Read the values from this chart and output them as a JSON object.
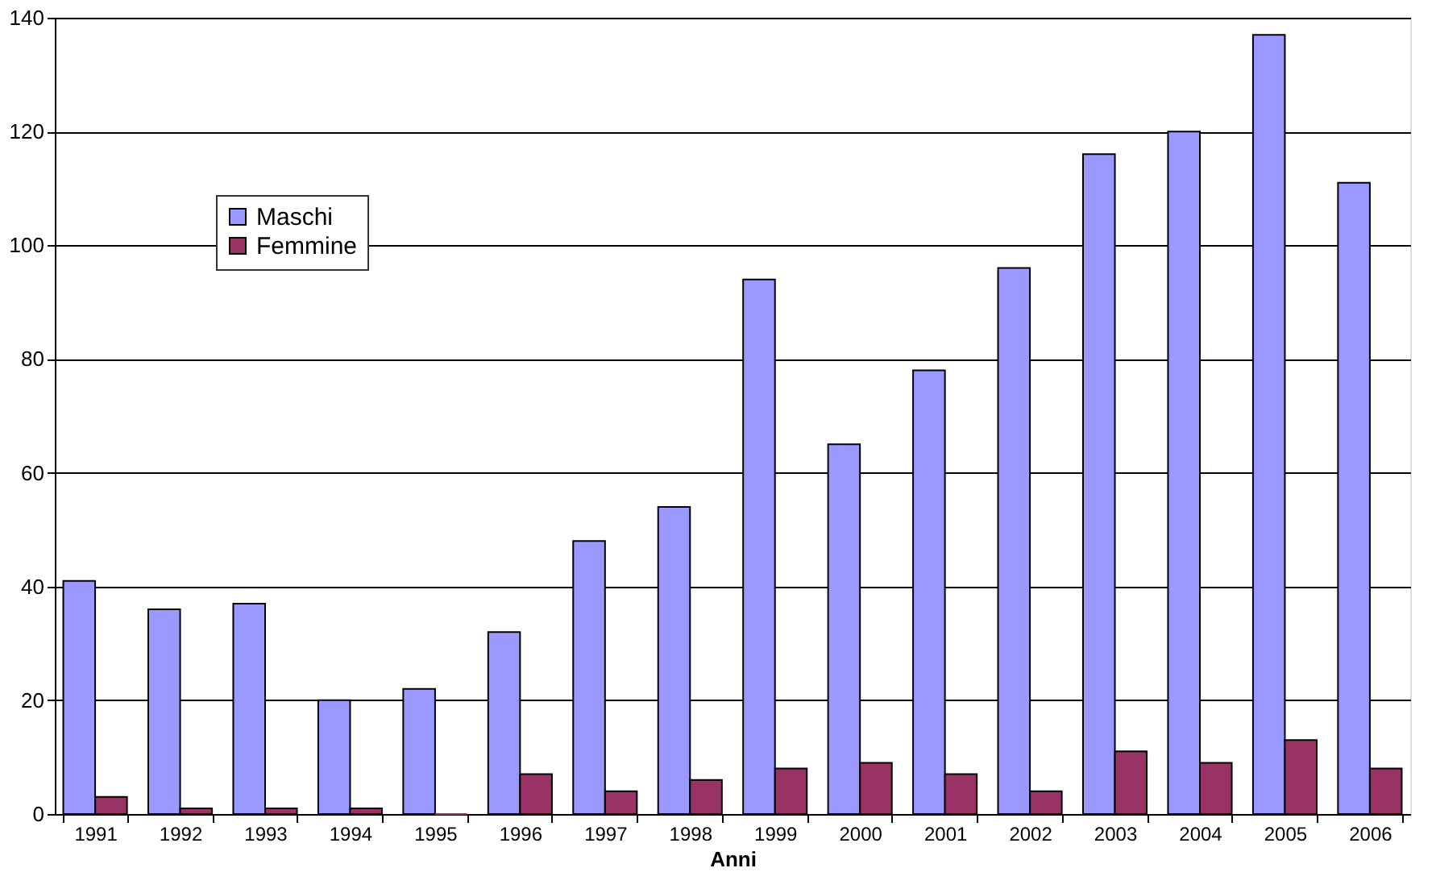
{
  "chart_data": {
    "type": "bar",
    "xlabel": "Anni",
    "categories": [
      "1991",
      "1992",
      "1993",
      "1994",
      "1995",
      "1996",
      "1997",
      "1998",
      "1999",
      "2000",
      "2001",
      "2002",
      "2003",
      "2004",
      "2005",
      "2006"
    ],
    "series": [
      {
        "name": "Maschi",
        "color": "#9999ff",
        "values": [
          41,
          36,
          37,
          20,
          22,
          32,
          48,
          54,
          94,
          65,
          78,
          96,
          116,
          120,
          137,
          111
        ]
      },
      {
        "name": "Femmine",
        "color": "#993366",
        "values": [
          3,
          1,
          1,
          1,
          0,
          7,
          4,
          6,
          8,
          9,
          7,
          4,
          11,
          9,
          13,
          8
        ]
      }
    ],
    "ylim": [
      0,
      140
    ],
    "yticks": [
      0,
      20,
      40,
      60,
      80,
      100,
      120,
      140
    ],
    "grid": "y",
    "legend": "top left"
  }
}
